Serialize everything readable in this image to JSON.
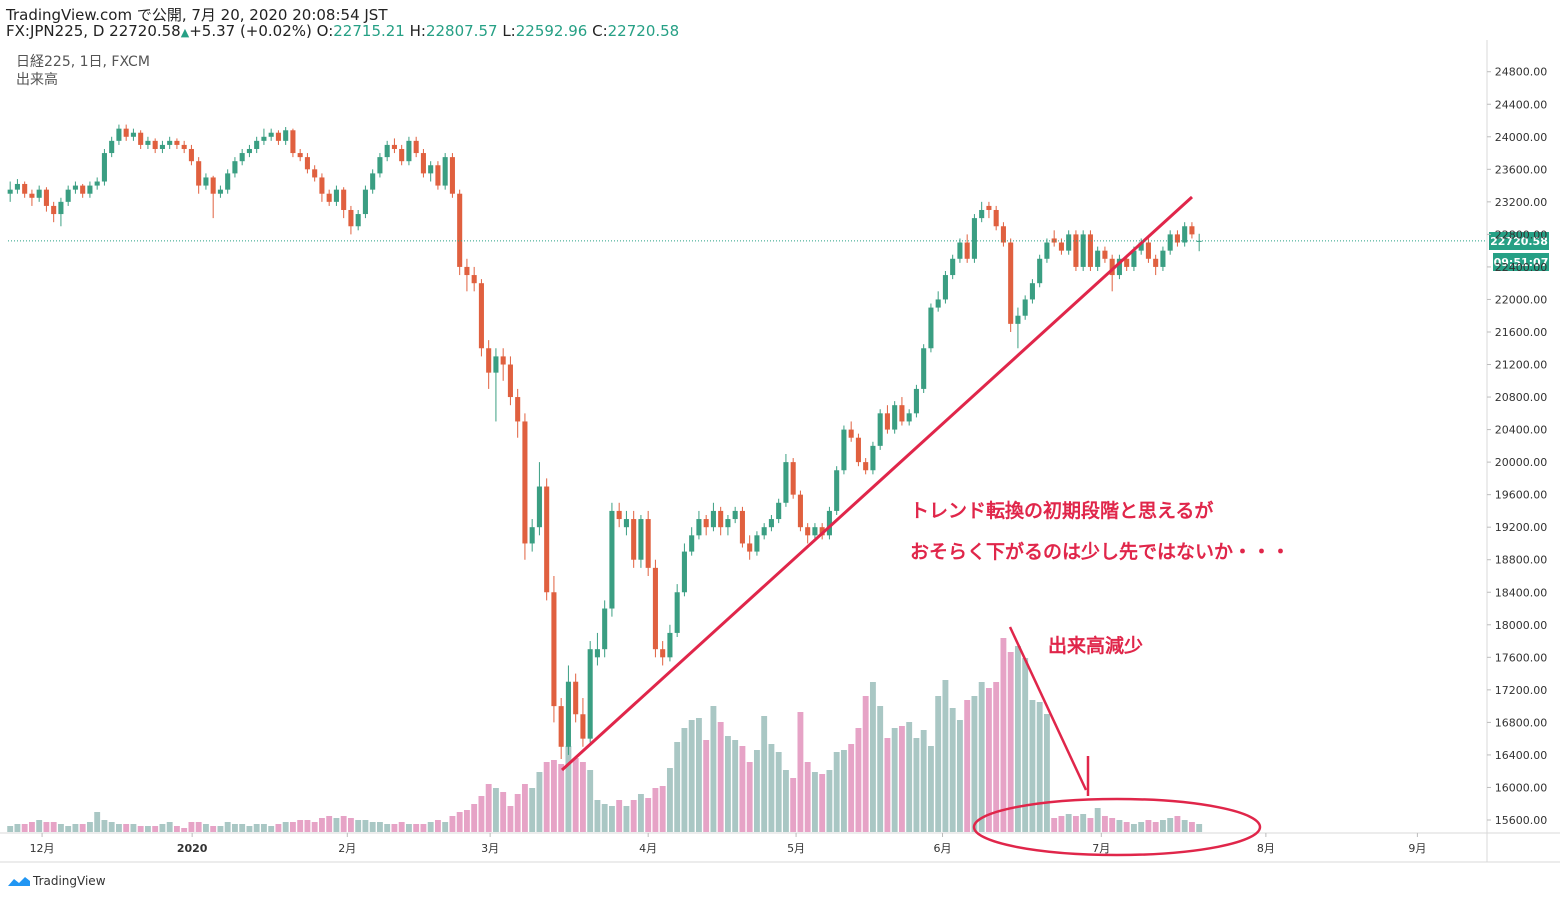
{
  "header": {
    "line1": "TradingView.com で公開, 7月 20, 2020 20:08:54 JST",
    "symbol": "FX:JPN225, D",
    "last": "22720.58",
    "arrow": "▲",
    "change": "+5.37 (+0.02%)",
    "o_label": "O:",
    "o": "22715.21",
    "h_label": "H:",
    "h": "22807.57",
    "l_label": "L:",
    "l": "22592.96",
    "c_label": "C:",
    "c": "22720.58"
  },
  "legend": {
    "main": "日経225, 1日, FXCM",
    "volume": "出来高"
  },
  "annotations": {
    "note1": "トレンド転換の初期段階と思えるが",
    "note2": "おそらく下がるのは少し先ではないか・・・",
    "note3": "出来高減少"
  },
  "price_tag": "22720.58",
  "timer": "09:51:07",
  "footer": "TradingView",
  "chart_data": {
    "type": "candlestick",
    "up_color": "#3a9e82",
    "down_color": "#e0603f",
    "volume_up_color": "#a9c7c4",
    "volume_down_color": "#e6a3c6",
    "xlim": [
      -0.3,
      203.7
    ],
    "ylim": [
      15440,
      25190
    ],
    "volume_ylim": [
      0,
      100
    ],
    "xticks": [
      {
        "value": 4.4,
        "label": "12月"
      },
      {
        "value": 25.1,
        "label": "2020"
      },
      {
        "value": 46.5,
        "label": "2月"
      },
      {
        "value": 66.2,
        "label": "3月"
      },
      {
        "value": 88,
        "label": "4月"
      },
      {
        "value": 108.4,
        "label": "5月"
      },
      {
        "value": 128.6,
        "label": "6月"
      },
      {
        "value": 150.5,
        "label": "7月"
      },
      {
        "value": 173.2,
        "label": "8月"
      },
      {
        "value": 194.1,
        "label": "9月"
      }
    ],
    "yticks": [
      {
        "value": 15600,
        "label": "15600.00"
      },
      {
        "value": 16000,
        "label": "16000.00"
      },
      {
        "value": 16400,
        "label": "16400.00"
      },
      {
        "value": 16800,
        "label": "16800.00"
      },
      {
        "value": 17200,
        "label": "17200.00"
      },
      {
        "value": 17600,
        "label": "17600.00"
      },
      {
        "value": 18000,
        "label": "18000.00"
      },
      {
        "value": 18400,
        "label": "18400.00"
      },
      {
        "value": 18800,
        "label": "18800.00"
      },
      {
        "value": 19200,
        "label": "19200.00"
      },
      {
        "value": 19600,
        "label": "19600.00"
      },
      {
        "value": 20000,
        "label": "20000.00"
      },
      {
        "value": 20400,
        "label": "20400.00"
      },
      {
        "value": 20800,
        "label": "20800.00"
      },
      {
        "value": 21200,
        "label": "21200.00"
      },
      {
        "value": 21600,
        "label": "21600.00"
      },
      {
        "value": 22000,
        "label": "22000.00"
      },
      {
        "value": 22400,
        "label": "22400.00"
      },
      {
        "value": 22800,
        "label": "22800.00"
      },
      {
        "value": 23200,
        "label": "23200.00"
      },
      {
        "value": 23600,
        "label": "23600.00"
      },
      {
        "value": 24000,
        "label": "24000.00"
      },
      {
        "value": 24400,
        "label": "24400.00"
      },
      {
        "value": 24800,
        "label": "24800.00"
      }
    ],
    "ohlc": [
      [
        23300,
        23450,
        23200,
        23350
      ],
      [
        23350,
        23480,
        23300,
        23420
      ],
      [
        23420,
        23450,
        23250,
        23300
      ],
      [
        23300,
        23350,
        23150,
        23250
      ],
      [
        23250,
        23400,
        23200,
        23350
      ],
      [
        23350,
        23380,
        23080,
        23150
      ],
      [
        23150,
        23200,
        22950,
        23050
      ],
      [
        23050,
        23250,
        22900,
        23200
      ],
      [
        23200,
        23400,
        23150,
        23350
      ],
      [
        23350,
        23450,
        23300,
        23400
      ],
      [
        23400,
        23420,
        23250,
        23300
      ],
      [
        23300,
        23450,
        23250,
        23400
      ],
      [
        23400,
        23500,
        23350,
        23450
      ],
      [
        23450,
        23850,
        23400,
        23800
      ],
      [
        23800,
        24000,
        23750,
        23950
      ],
      [
        23950,
        24150,
        23900,
        24100
      ],
      [
        24100,
        24150,
        23950,
        24000
      ],
      [
        24000,
        24100,
        23950,
        24050
      ],
      [
        24050,
        24080,
        23850,
        23900
      ],
      [
        23900,
        24000,
        23850,
        23950
      ],
      [
        23950,
        23980,
        23800,
        23850
      ],
      [
        23850,
        23950,
        23800,
        23900
      ],
      [
        23900,
        24000,
        23850,
        23950
      ],
      [
        23950,
        23980,
        23850,
        23900
      ],
      [
        23900,
        23950,
        23800,
        23850
      ],
      [
        23850,
        23900,
        23650,
        23700
      ],
      [
        23700,
        23750,
        23300,
        23400
      ],
      [
        23400,
        23550,
        23350,
        23500
      ],
      [
        23500,
        23520,
        23000,
        23300
      ],
      [
        23300,
        23400,
        23250,
        23350
      ],
      [
        23350,
        23600,
        23300,
        23550
      ],
      [
        23550,
        23750,
        23500,
        23700
      ],
      [
        23700,
        23850,
        23650,
        23800
      ],
      [
        23800,
        23900,
        23750,
        23850
      ],
      [
        23850,
        24000,
        23800,
        23950
      ],
      [
        23950,
        24100,
        23900,
        24000
      ],
      [
        24000,
        24100,
        23950,
        24050
      ],
      [
        24050,
        24080,
        23900,
        23950
      ],
      [
        23950,
        24120,
        23900,
        24080
      ],
      [
        24080,
        24100,
        23750,
        23800
      ],
      [
        23800,
        23850,
        23700,
        23750
      ],
      [
        23750,
        23800,
        23550,
        23600
      ],
      [
        23600,
        23650,
        23450,
        23500
      ],
      [
        23500,
        23550,
        23200,
        23300
      ],
      [
        23300,
        23350,
        23150,
        23200
      ],
      [
        23200,
        23400,
        23150,
        23350
      ],
      [
        23350,
        23380,
        23000,
        23100
      ],
      [
        23100,
        23150,
        22800,
        22900
      ],
      [
        22900,
        23100,
        22850,
        23050
      ],
      [
        23050,
        23400,
        23000,
        23350
      ],
      [
        23350,
        23600,
        23300,
        23550
      ],
      [
        23550,
        23800,
        23500,
        23750
      ],
      [
        23750,
        23950,
        23700,
        23900
      ],
      [
        23900,
        23980,
        23800,
        23850
      ],
      [
        23850,
        23900,
        23650,
        23700
      ],
      [
        23700,
        24000,
        23650,
        23950
      ],
      [
        23950,
        24000,
        23750,
        23800
      ],
      [
        23800,
        23850,
        23500,
        23550
      ],
      [
        23550,
        23700,
        23450,
        23650
      ],
      [
        23650,
        23700,
        23350,
        23400
      ],
      [
        23400,
        23800,
        23350,
        23750
      ],
      [
        23750,
        23800,
        23250,
        23300
      ],
      [
        23300,
        23350,
        22300,
        22400
      ],
      [
        22400,
        22500,
        22100,
        22300
      ],
      [
        22300,
        22400,
        22100,
        22200
      ],
      [
        22200,
        22250,
        21300,
        21400
      ],
      [
        21400,
        21500,
        20900,
        21100
      ],
      [
        21100,
        21400,
        20500,
        21300
      ],
      [
        21300,
        21400,
        21000,
        21200
      ],
      [
        21200,
        21300,
        20700,
        20800
      ],
      [
        20800,
        20900,
        20300,
        20500
      ],
      [
        20500,
        20600,
        18800,
        19000
      ],
      [
        19000,
        19300,
        18900,
        19200
      ],
      [
        19200,
        20000,
        19100,
        19700
      ],
      [
        19700,
        19800,
        18300,
        18400
      ],
      [
        18400,
        18600,
        16800,
        17000
      ],
      [
        17000,
        17100,
        16350,
        16500
      ],
      [
        16500,
        17500,
        16400,
        17300
      ],
      [
        17300,
        17400,
        16800,
        16900
      ],
      [
        16900,
        17100,
        16500,
        16600
      ],
      [
        16600,
        17800,
        16550,
        17700
      ],
      [
        17600,
        17900,
        17500,
        17700
      ],
      [
        17700,
        18300,
        17600,
        18200
      ],
      [
        18200,
        19500,
        18100,
        19400
      ],
      [
        19400,
        19500,
        19200,
        19300
      ],
      [
        19200,
        19400,
        19100,
        19300
      ],
      [
        19300,
        19400,
        18700,
        18800
      ],
      [
        18800,
        19350,
        18700,
        19300
      ],
      [
        19300,
        19400,
        18600,
        18700
      ],
      [
        18700,
        18800,
        17600,
        17700
      ],
      [
        17700,
        17800,
        17500,
        17600
      ],
      [
        17600,
        18000,
        17550,
        17900
      ],
      [
        17900,
        18500,
        17850,
        18400
      ],
      [
        18400,
        19000,
        18350,
        18900
      ],
      [
        18900,
        19200,
        18850,
        19100
      ],
      [
        19100,
        19400,
        19050,
        19300
      ],
      [
        19300,
        19350,
        19100,
        19200
      ],
      [
        19200,
        19500,
        19150,
        19400
      ],
      [
        19400,
        19450,
        19100,
        19200
      ],
      [
        19200,
        19350,
        19100,
        19300
      ],
      [
        19300,
        19450,
        19250,
        19400
      ],
      [
        19400,
        19450,
        18950,
        19000
      ],
      [
        19000,
        19100,
        18800,
        18900
      ],
      [
        18900,
        19150,
        18850,
        19100
      ],
      [
        19100,
        19250,
        19050,
        19200
      ],
      [
        19200,
        19350,
        19150,
        19300
      ],
      [
        19300,
        19550,
        19250,
        19500
      ],
      [
        19500,
        20100,
        19450,
        20000
      ],
      [
        20000,
        20050,
        19550,
        19600
      ],
      [
        19600,
        19650,
        19150,
        19200
      ],
      [
        19200,
        19250,
        19000,
        19100
      ],
      [
        19100,
        19250,
        19050,
        19200
      ],
      [
        19200,
        19250,
        19050,
        19100
      ],
      [
        19100,
        19450,
        19050,
        19400
      ],
      [
        19400,
        19950,
        19350,
        19900
      ],
      [
        19900,
        20450,
        19850,
        20400
      ],
      [
        20400,
        20500,
        20250,
        20300
      ],
      [
        20300,
        20350,
        19950,
        20000
      ],
      [
        20000,
        20050,
        19850,
        19900
      ],
      [
        19900,
        20250,
        19850,
        20200
      ],
      [
        20200,
        20650,
        20150,
        20600
      ],
      [
        20600,
        20700,
        20350,
        20400
      ],
      [
        20400,
        20750,
        20350,
        20700
      ],
      [
        20700,
        20800,
        20450,
        20500
      ],
      [
        20500,
        20650,
        20450,
        20600
      ],
      [
        20600,
        20950,
        20550,
        20900
      ],
      [
        20900,
        21450,
        20850,
        21400
      ],
      [
        21400,
        21950,
        21350,
        21900
      ],
      [
        21900,
        22100,
        21850,
        22000
      ],
      [
        22000,
        22350,
        21950,
        22300
      ],
      [
        22300,
        22550,
        22250,
        22500
      ],
      [
        22500,
        22750,
        22450,
        22700
      ],
      [
        22700,
        22800,
        22450,
        22500
      ],
      [
        22500,
        23050,
        22450,
        23000
      ],
      [
        23000,
        23200,
        22950,
        23100
      ],
      [
        23150,
        23200,
        23000,
        23100
      ],
      [
        23100,
        23150,
        22850,
        22900
      ],
      [
        22900,
        22950,
        22650,
        22700
      ],
      [
        22700,
        22750,
        21600,
        21700
      ],
      [
        21700,
        21900,
        21400,
        21800
      ],
      [
        21800,
        22050,
        21750,
        22000
      ],
      [
        22000,
        22250,
        21950,
        22200
      ],
      [
        22200,
        22550,
        22150,
        22500
      ],
      [
        22500,
        22750,
        22450,
        22700
      ],
      [
        22750,
        22850,
        22650,
        22700
      ],
      [
        22700,
        22750,
        22550,
        22600
      ],
      [
        22600,
        22850,
        22550,
        22800
      ],
      [
        22800,
        22850,
        22350,
        22400
      ],
      [
        22400,
        22850,
        22350,
        22800
      ],
      [
        22800,
        22850,
        22350,
        22400
      ],
      [
        22400,
        22650,
        22350,
        22600
      ],
      [
        22600,
        22650,
        22450,
        22500
      ],
      [
        22500,
        22550,
        22100,
        22300
      ],
      [
        22300,
        22550,
        22250,
        22500
      ],
      [
        22500,
        22550,
        22350,
        22400
      ],
      [
        22400,
        22650,
        22350,
        22600
      ],
      [
        22600,
        22750,
        22550,
        22700
      ],
      [
        22700,
        22750,
        22450,
        22500
      ],
      [
        22500,
        22550,
        22300,
        22400
      ],
      [
        22400,
        22650,
        22350,
        22600
      ],
      [
        22600,
        22850,
        22550,
        22800
      ],
      [
        22800,
        22850,
        22650,
        22700
      ],
      [
        22700,
        22950,
        22650,
        22900
      ],
      [
        22900,
        22950,
        22750,
        22800
      ],
      [
        22715.21,
        22807.57,
        22592.96,
        22720.58
      ]
    ],
    "volume": [
      3,
      4,
      4,
      5,
      6,
      5,
      5,
      4,
      3,
      4,
      4,
      5,
      10,
      6,
      5,
      4,
      4,
      4,
      3,
      3,
      3,
      4,
      5,
      3,
      2,
      5,
      5,
      4,
      3,
      3,
      5,
      4,
      4,
      3,
      4,
      4,
      3,
      4,
      5,
      5,
      6,
      6,
      5,
      7,
      8,
      7,
      8,
      7,
      6,
      6,
      5,
      5,
      4,
      4,
      5,
      4,
      4,
      4,
      5,
      6,
      5,
      8,
      10,
      11,
      14,
      18,
      24,
      22,
      20,
      13,
      19,
      24,
      22,
      30,
      35,
      36,
      34,
      43,
      37,
      35,
      31,
      16,
      14,
      13,
      16,
      13,
      16,
      19,
      17,
      22,
      23,
      32,
      45,
      52,
      56,
      57,
      46,
      63,
      55,
      48,
      46,
      43,
      35,
      41,
      58,
      44,
      40,
      31,
      27,
      60,
      35,
      30,
      29,
      31,
      40,
      41,
      44,
      52,
      68,
      75,
      63,
      47,
      52,
      53,
      55,
      47,
      51,
      43,
      68,
      76,
      62,
      56,
      66,
      68,
      75,
      72,
      75,
      97,
      90,
      93,
      87,
      66,
      65,
      59,
      7,
      8,
      9,
      8,
      9,
      7,
      12,
      8,
      7,
      6,
      5,
      4,
      5,
      6,
      5,
      6,
      7,
      8,
      6,
      5,
      4
    ]
  }
}
